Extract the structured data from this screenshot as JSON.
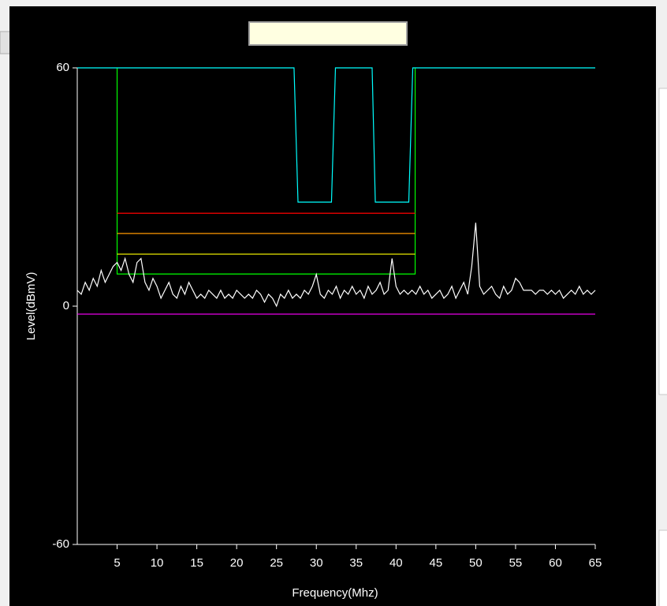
{
  "chart_data": {
    "type": "line",
    "xlabel": "Frequency(Mhz)",
    "ylabel": "Level(dBmV)",
    "xlim": [
      0,
      65
    ],
    "ylim": [
      -60,
      60
    ],
    "xticks": [
      5,
      10,
      15,
      20,
      25,
      30,
      35,
      40,
      45,
      50,
      55,
      60,
      65
    ],
    "yticks": [
      -60,
      0,
      60
    ],
    "series": [
      {
        "color": "#00ff00",
        "x": [
          5,
          5,
          42.4,
          42.4
        ],
        "values": [
          60,
          8.1,
          8.1,
          60
        ]
      },
      {
        "color": "#ff0000",
        "x": [
          5,
          42.4
        ],
        "values": [
          23.4,
          23.4
        ]
      },
      {
        "color": "#ff9900",
        "x": [
          5,
          42.4
        ],
        "values": [
          18.3,
          18.3
        ]
      },
      {
        "color": "#ffff00",
        "x": [
          5,
          42.4
        ],
        "values": [
          13.1,
          13.1
        ]
      },
      {
        "color": "#ff00ff",
        "x": [
          0,
          65
        ],
        "values": [
          -2,
          -2
        ]
      },
      {
        "color": "#00ffff",
        "x": [
          0,
          27.2,
          27.7,
          31.9,
          32.4,
          37.0,
          37.4,
          41.6,
          42.1,
          65
        ],
        "values": [
          60,
          60,
          26.2,
          26.2,
          60,
          60,
          26.2,
          26.2,
          60,
          60
        ]
      },
      {
        "color": "#ffffff",
        "x": [
          0,
          0.5,
          1,
          1.5,
          2,
          2.5,
          3,
          3.5,
          4,
          4.5,
          5,
          5.5,
          6,
          6.5,
          7,
          7.5,
          8,
          8.5,
          9,
          9.5,
          10,
          10.5,
          11,
          11.5,
          12,
          12.5,
          13,
          13.5,
          14,
          14.5,
          15,
          15.5,
          16,
          16.5,
          17,
          17.5,
          18,
          18.5,
          19,
          19.5,
          20,
          20.5,
          21,
          21.5,
          22,
          22.5,
          23,
          23.5,
          24,
          24.5,
          25,
          25.5,
          26,
          26.5,
          27,
          27.5,
          28,
          28.5,
          29,
          29.5,
          30,
          30.5,
          31,
          31.5,
          32,
          32.5,
          33,
          33.5,
          34,
          34.5,
          35,
          35.5,
          36,
          36.5,
          37,
          37.5,
          38,
          38.5,
          39,
          39.5,
          40,
          40.5,
          41,
          41.5,
          42,
          42.5,
          43,
          43.5,
          44,
          44.5,
          45,
          45.5,
          46,
          46.5,
          47,
          47.5,
          48,
          48.5,
          49,
          49.5,
          50,
          50.5,
          51,
          51.5,
          52,
          52.5,
          53,
          53.5,
          54,
          54.5,
          55,
          55.5,
          56,
          56.5,
          57,
          57.5,
          58,
          58.5,
          59,
          59.5,
          60,
          60.5,
          61,
          61.5,
          62,
          62.5,
          63,
          63.5,
          64,
          64.5,
          65
        ],
        "values": [
          4,
          3,
          6,
          4,
          7,
          5,
          9,
          6,
          8,
          10,
          11,
          9,
          12,
          8,
          6,
          11,
          12,
          6,
          4,
          7,
          5,
          2,
          4,
          6,
          3,
          2,
          5,
          3,
          6,
          4,
          2,
          3,
          2,
          4,
          3,
          2,
          4,
          2,
          3,
          2,
          4,
          3,
          2,
          3,
          2,
          4,
          3,
          1,
          3,
          2,
          0,
          3,
          2,
          4,
          2,
          3,
          2,
          4,
          3,
          5,
          8,
          3,
          2,
          4,
          3,
          5,
          2,
          4,
          3,
          5,
          3,
          4,
          2,
          5,
          3,
          4,
          6,
          3,
          4,
          12,
          5,
          3,
          4,
          3,
          4,
          3,
          5,
          3,
          4,
          2,
          3,
          4,
          2,
          3,
          5,
          2,
          4,
          6,
          3,
          10,
          21,
          5,
          3,
          4,
          5,
          3,
          2,
          5,
          3,
          4,
          7,
          6,
          4,
          4,
          4,
          3,
          4,
          4,
          3,
          4,
          3,
          4,
          2,
          3,
          4,
          3,
          5,
          3,
          4,
          3,
          4
        ]
      }
    ]
  }
}
